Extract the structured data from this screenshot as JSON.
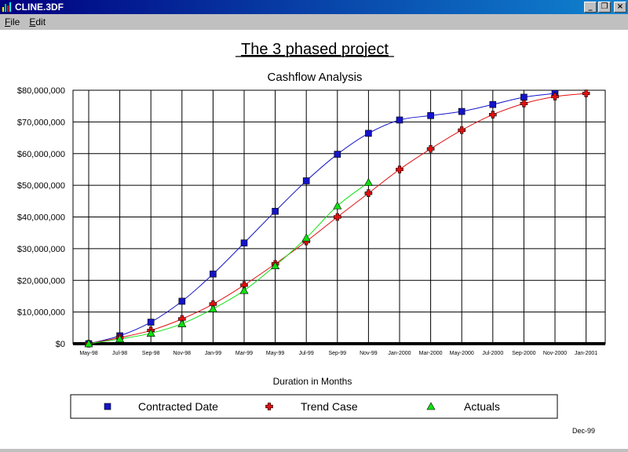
{
  "window": {
    "title": "CLINE.3DF",
    "minimize_glyph": "_",
    "restore_glyph": "❐",
    "close_glyph": "×"
  },
  "menu": [
    {
      "label": "File",
      "accel": "F",
      "rest": "ile"
    },
    {
      "label": "Edit",
      "accel": "E",
      "rest": "dit"
    }
  ],
  "colors": {
    "contracted": "#1414c8",
    "trend": "#e01010",
    "actuals": "#10e010",
    "axis": "#000000"
  },
  "footer": {
    "date": "Dec-99"
  },
  "chart_data": {
    "type": "line",
    "title": "The 3 phased project",
    "subtitle": "Cashflow Analysis",
    "xlabel": "Duration in Months",
    "ylabel": "",
    "ylim": [
      0,
      80000000
    ],
    "yticks": [
      0,
      10000000,
      20000000,
      30000000,
      40000000,
      50000000,
      60000000,
      70000000,
      80000000
    ],
    "ytick_labels": [
      "$0",
      "$10,000,000",
      "$20,000,000",
      "$30,000,000",
      "$40,000,000",
      "$50,000,000",
      "$60,000,000",
      "$70,000,000",
      "$80,000,000"
    ],
    "x_labels": [
      "May-98",
      "Jul-98",
      "Sep-98",
      "Nov-98",
      "Jan-99",
      "Mar-99",
      "May-99",
      "Jul-99",
      "Sep-99",
      "Nov-99",
      "Jan-2000",
      "Mar-2000",
      "May-2000",
      "Jul-2000",
      "Sep-2000",
      "Nov-2000",
      "Jan-2001"
    ],
    "grid": true,
    "legend_position": "bottom",
    "series": [
      {
        "name": "Contracted Date",
        "marker": "square",
        "values": [
          0,
          2500000,
          6800000,
          13400000,
          22000000,
          31800000,
          41800000,
          51400000,
          59800000,
          66400000,
          70600000,
          72000000,
          73300000,
          75500000,
          77800000,
          79000000,
          null
        ]
      },
      {
        "name": "Trend Case",
        "marker": "cross",
        "values": [
          0,
          1900000,
          4200000,
          7800000,
          12500000,
          18500000,
          25200000,
          32300000,
          40000000,
          47500000,
          55000000,
          61500000,
          67400000,
          72300000,
          75800000,
          78000000,
          79000000
        ]
      },
      {
        "name": "Actuals",
        "marker": "triangle",
        "values": [
          0,
          1500000,
          3300000,
          6300000,
          11000000,
          16800000,
          24600000,
          33400000,
          43500000,
          50900000,
          null,
          null,
          null,
          null,
          null,
          null,
          null
        ]
      }
    ]
  }
}
